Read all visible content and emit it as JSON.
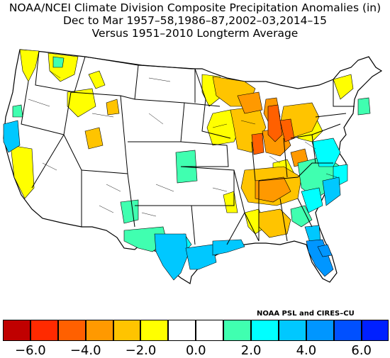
{
  "title": {
    "line1": "NOAA/NCEI Climate Division Composite Precipitation Anomalies (in)",
    "line2": "Dec to Mar  1957–58,1986–87,2002–03,2014–15",
    "line3": "Versus 1951–2010 Longterm Average"
  },
  "credit": "NOAA PSL and CIRES–CU",
  "colorbar": {
    "colors": [
      "#c00000",
      "#ff2a00",
      "#ff6000",
      "#ff9900",
      "#ffc400",
      "#ffff00",
      "#ffffff",
      "#ffffff",
      "#40ffb0",
      "#00ffff",
      "#00c8ff",
      "#0096ff",
      "#0050ff",
      "#0020ff"
    ],
    "tick_labels": [
      "−6.0",
      "−4.0",
      "−2.0",
      "0.0",
      "2.0",
      "4.0",
      "6.0"
    ]
  }
}
